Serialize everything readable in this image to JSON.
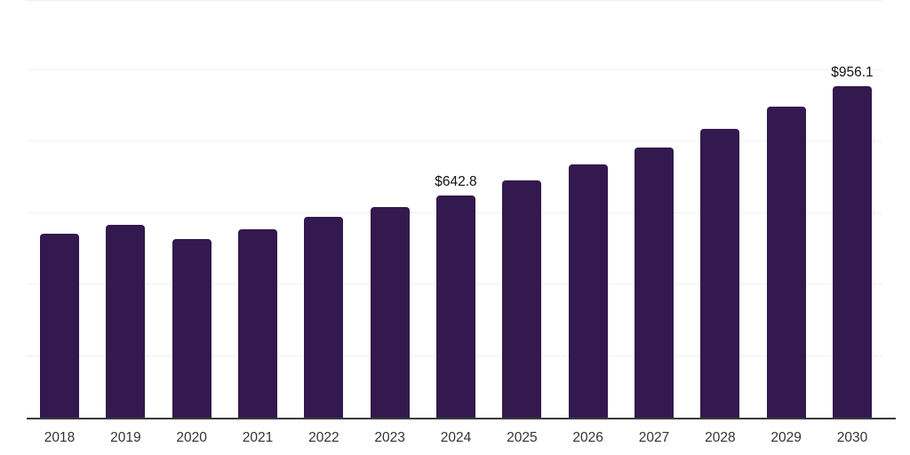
{
  "chart_data": {
    "type": "bar",
    "title": "",
    "xlabel": "",
    "ylabel": "",
    "categories": [
      "2018",
      "2019",
      "2020",
      "2021",
      "2022",
      "2023",
      "2024",
      "2025",
      "2026",
      "2027",
      "2028",
      "2029",
      "2030"
    ],
    "values": [
      530,
      557,
      516,
      543,
      580,
      608,
      642.8,
      686,
      731,
      781,
      834,
      898,
      956.1
    ],
    "annotations": [
      {
        "category": "2024",
        "label": "$642.8"
      },
      {
        "category": "2030",
        "label": "$956.1"
      }
    ],
    "ylim": [
      0,
      1206
    ],
    "grid": true,
    "legend": false,
    "colors": {
      "bar": "#33194E",
      "axis": "#3b3b3b",
      "gridline": "#f0f0f0",
      "tick_label": "#333333",
      "annotation": "#111111"
    }
  }
}
